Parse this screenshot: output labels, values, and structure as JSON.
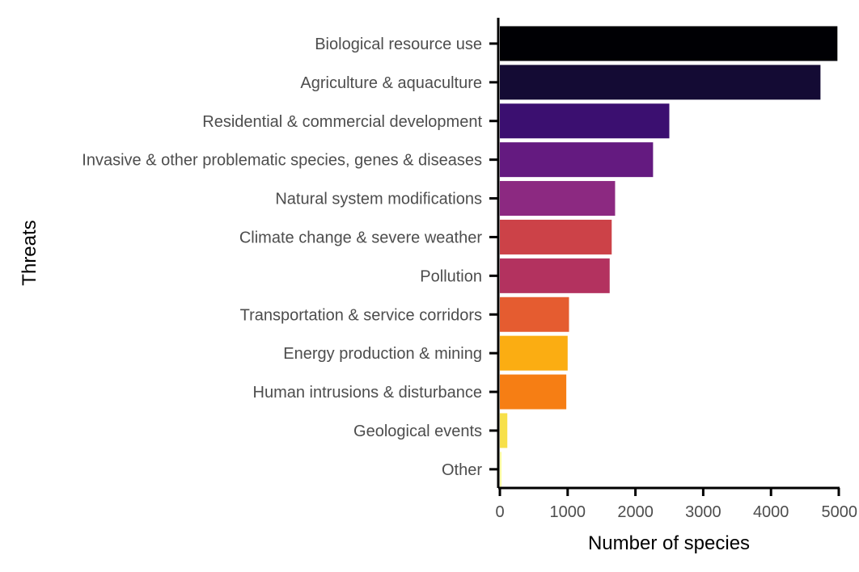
{
  "chart_data": {
    "type": "bar",
    "orientation": "horizontal",
    "xlabel": "Number of species",
    "ylabel": "Threats",
    "xlim": [
      0,
      5000
    ],
    "xticks": [
      "0",
      "1000",
      "2000",
      "3000",
      "4000",
      "5000"
    ],
    "grid": false,
    "legend": "none",
    "categories": [
      "Biological resource use",
      "Agriculture & aquaculture",
      "Residential & commercial development",
      "Invasive & other problematic species, genes & diseases",
      "Natural system modifications",
      "Climate change & severe weather",
      "Pollution",
      "Transportation & service corridors",
      "Energy production & mining",
      "Human intrusions & disturbance",
      "Geological events",
      "Other"
    ],
    "values": [
      4980,
      4730,
      2500,
      2260,
      1700,
      1650,
      1620,
      1020,
      1000,
      980,
      110,
      25
    ],
    "colors": [
      "#000004",
      "#140b34",
      "#3b0f70",
      "#641a80",
      "#8c2981",
      "#cc4248",
      "#b3325f",
      "#e55c30",
      "#fbad12",
      "#f67e14",
      "#f7e04a",
      "#fcffa4"
    ]
  }
}
